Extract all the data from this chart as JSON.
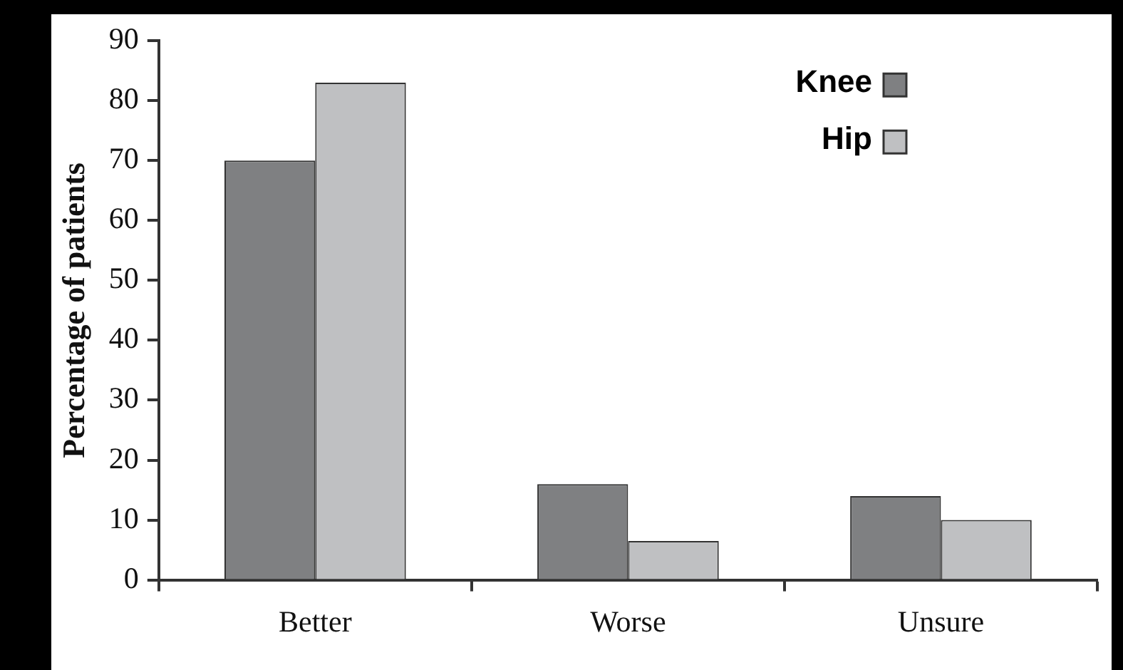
{
  "chart_data": {
    "type": "bar",
    "ylabel": "Percentage of patients",
    "categories": [
      "Better",
      "Worse",
      "Unsure"
    ],
    "series": [
      {
        "name": "Knee",
        "color": "#7f8082",
        "values": [
          70,
          16,
          14
        ]
      },
      {
        "name": "Hip",
        "color": "#bfc0c2",
        "values": [
          83,
          6.5,
          10
        ]
      }
    ],
    "ylim": [
      0,
      90
    ],
    "yticks": [
      0,
      10,
      20,
      30,
      40,
      50,
      60,
      70,
      80,
      90
    ],
    "grid": false,
    "legend": "top right"
  }
}
